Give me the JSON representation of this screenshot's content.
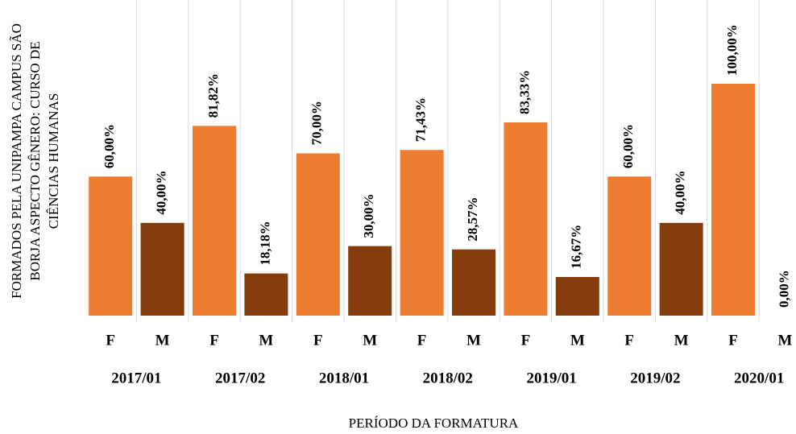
{
  "chart_data": {
    "type": "bar",
    "ylabel": [
      "FORMADOS PELA UNIPAMPA CAMPUS SÃO",
      "BORJA ASPECTO GÊNERO: CURSO DE",
      "CIÊNCIAS HUMANAS"
    ],
    "xlabel": "PERÍODO DA FORMATURA",
    "categories": [
      "F",
      "M",
      "F",
      "M",
      "F",
      "M",
      "F",
      "M",
      "F",
      "M",
      "F",
      "M",
      "F",
      "M"
    ],
    "groups": [
      "2017/01",
      "2017/02",
      "2018/01",
      "2018/02",
      "2019/01",
      "2019/02",
      "2020/01"
    ],
    "values": [
      60,
      40,
      81.82,
      18.18,
      70,
      30,
      71.43,
      28.57,
      83.33,
      16.67,
      60,
      40,
      100,
      0
    ],
    "value_labels": [
      "60,00%",
      "40,00%",
      "81,82%",
      "18,18%",
      "70,00%",
      "30,00%",
      "71,43%",
      "28,57%",
      "83,33%",
      "16,67%",
      "60,00%",
      "40,00%",
      "100,00%",
      "0,00%"
    ],
    "colors": [
      "#ed7d31",
      "#843c0c",
      "#ed7d31",
      "#843c0c",
      "#ed7d31",
      "#843c0c",
      "#ed7d31",
      "#843c0c",
      "#ed7d31",
      "#843c0c",
      "#ed7d31",
      "#843c0c",
      "#ed7d31",
      "#843c0c"
    ],
    "ylim": [
      0,
      100
    ]
  }
}
